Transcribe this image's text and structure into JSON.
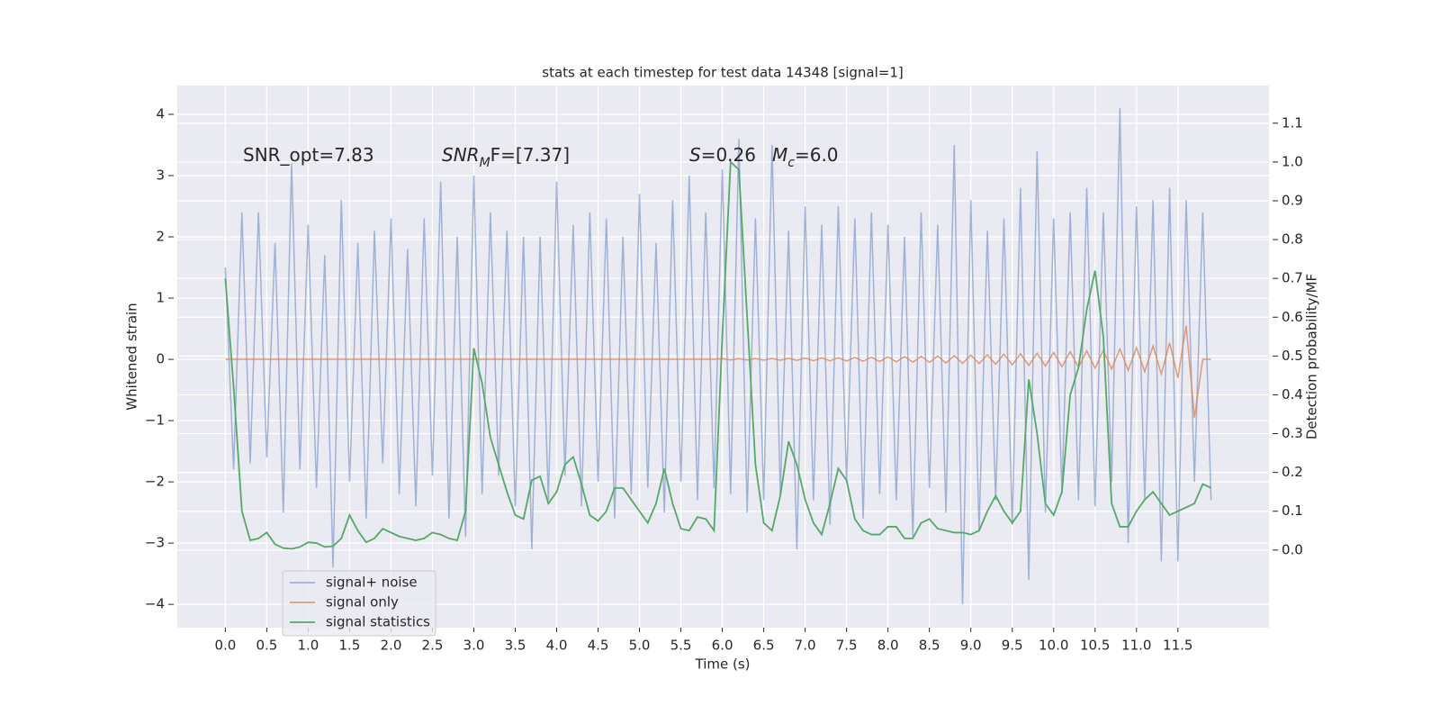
{
  "chart_data": {
    "type": "line",
    "title": "stats at each timestep for test data 14348 [signal=1]",
    "x_label": "Time (s)",
    "y_label": "Whitened strain",
    "y2_label": "Detection probability/MF",
    "annotations": [
      [
        {
          "text": "SNR_opt=7.83"
        }
      ],
      [
        {
          "text": "SNR",
          "italic": true
        },
        {
          "text": "M",
          "italic": true,
          "sub": true
        },
        {
          "text": "F=[7.37]"
        }
      ],
      [
        {
          "text": "S",
          "italic": true
        },
        {
          "text": "=0.26"
        }
      ],
      [
        {
          "text": "M",
          "italic": true
        },
        {
          "text": "c",
          "italic": true,
          "sub": true
        },
        {
          "text": "=6.0"
        }
      ]
    ],
    "x": [
      0,
      0.1,
      0.2,
      0.3,
      0.4,
      0.5,
      0.6,
      0.7,
      0.8,
      0.9,
      1,
      1.1,
      1.2,
      1.3,
      1.4,
      1.5,
      1.6,
      1.7,
      1.8,
      1.9,
      2,
      2.1,
      2.2,
      2.3,
      2.4,
      2.5,
      2.6,
      2.7,
      2.8,
      2.9,
      3,
      3.1,
      3.2,
      3.3,
      3.4,
      3.5,
      3.6,
      3.7,
      3.8,
      3.9,
      4,
      4.1,
      4.2,
      4.3,
      4.4,
      4.5,
      4.6,
      4.7,
      4.8,
      4.9,
      5,
      5.1,
      5.2,
      5.3,
      5.4,
      5.5,
      5.6,
      5.7,
      5.8,
      5.9,
      6,
      6.1,
      6.2,
      6.3,
      6.4,
      6.5,
      6.6,
      6.7,
      6.8,
      6.9,
      7,
      7.1,
      7.2,
      7.3,
      7.4,
      7.5,
      7.6,
      7.7,
      7.8,
      7.9,
      8,
      8.1,
      8.2,
      8.3,
      8.4,
      8.5,
      8.6,
      8.7,
      8.8,
      8.9,
      9,
      9.1,
      9.2,
      9.3,
      9.4,
      9.5,
      9.6,
      9.7,
      9.8,
      9.9,
      10,
      10.1,
      10.2,
      10.3,
      10.4,
      10.5,
      10.6,
      10.7,
      10.8,
      10.9,
      11,
      11.1,
      11.2,
      11.3,
      11.4,
      11.5,
      11.6,
      11.7,
      11.8,
      11.9
    ],
    "series": [
      {
        "name": "signal+ noise",
        "color": "#8ea3cd",
        "values": [
          1.5,
          -1.8,
          2.4,
          -1.7,
          2.4,
          -1.6,
          1.9,
          -2.5,
          3.2,
          -1.8,
          2.2,
          -2.1,
          1.7,
          -3.4,
          2.6,
          -2.0,
          1.9,
          -2.6,
          2.1,
          -1.7,
          2.3,
          -2.2,
          1.8,
          -2.4,
          2.3,
          -1.9,
          2.9,
          -2.6,
          2.0,
          -2.9,
          3.0,
          -2.2,
          2.4,
          -1.9,
          2.1,
          -2.4,
          2.0,
          -3.1,
          2.0,
          -2.3,
          2.9,
          -1.9,
          2.2,
          -2.4,
          2.4,
          -2.0,
          2.3,
          -2.6,
          2.0,
          -2.2,
          2.7,
          -2.1,
          1.9,
          -2.5,
          2.6,
          -2.0,
          3.0,
          -2.3,
          2.4,
          -2.1,
          3.1,
          -2.2,
          3.6,
          -2.5,
          2.3,
          -2.3,
          3.5,
          -2.2,
          2.1,
          -3.1,
          2.5,
          -2.3,
          2.2,
          -2.7,
          2.5,
          -2.0,
          2.3,
          -2.6,
          2.4,
          -2.2,
          2.2,
          -2.3,
          2.0,
          -2.9,
          2.4,
          -2.1,
          2.2,
          -2.5,
          3.5,
          -4.0,
          2.6,
          -2.8,
          2.1,
          -2.3,
          2.3,
          -2.7,
          2.8,
          -3.6,
          3.4,
          -2.5,
          2.3,
          -2.2,
          2.4,
          -2.3,
          2.8,
          -2.4,
          2.4,
          -2.0,
          4.1,
          -3.0,
          2.5,
          -2.3,
          2.6,
          -3.3,
          2.8,
          -3.3,
          2.6,
          -2.0,
          2.4,
          -2.3
        ]
      },
      {
        "name": "signal only",
        "color": "#dd8452",
        "values": [
          0,
          0,
          0,
          0,
          0,
          0,
          0,
          0,
          0,
          0,
          0,
          0,
          0,
          0,
          0,
          0,
          0,
          0,
          0,
          0,
          0,
          0,
          0,
          0,
          0,
          0,
          0,
          0,
          0,
          0,
          0,
          0,
          0,
          0,
          0,
          0,
          0,
          0,
          0,
          0,
          0,
          0,
          0,
          0,
          0,
          0,
          0,
          0,
          0,
          0,
          0,
          0,
          0,
          0,
          0,
          0,
          0,
          0,
          0,
          0,
          0.01,
          -0.01,
          0.01,
          -0.01,
          0.012,
          -0.012,
          0.014,
          -0.014,
          0.016,
          -0.016,
          0.02,
          -0.02,
          0.022,
          -0.022,
          0.025,
          -0.025,
          0.03,
          -0.03,
          0.033,
          -0.035,
          0.04,
          -0.04,
          0.045,
          -0.045,
          0.05,
          -0.05,
          0.055,
          -0.06,
          0.06,
          -0.065,
          0.07,
          -0.07,
          0.075,
          -0.08,
          0.085,
          -0.09,
          0.09,
          -0.1,
          0.1,
          -0.11,
          0.11,
          -0.12,
          0.125,
          -0.13,
          0.14,
          -0.145,
          0.15,
          -0.16,
          0.17,
          -0.18,
          0.19,
          -0.2,
          0.22,
          -0.24,
          0.27,
          -0.3,
          0.55,
          -0.95,
          0,
          0
        ]
      },
      {
        "name": "signal statistics",
        "color": "#55a868",
        "axis": "y2",
        "values": [
          0.7,
          0.42,
          0.1,
          0.025,
          0.03,
          0.045,
          0.015,
          0.005,
          0.003,
          0.008,
          0.02,
          0.018,
          0.008,
          0.01,
          0.03,
          0.09,
          0.05,
          0.02,
          0.03,
          0.055,
          0.045,
          0.035,
          0.03,
          0.025,
          0.03,
          0.045,
          0.04,
          0.03,
          0.025,
          0.1,
          0.52,
          0.43,
          0.29,
          0.22,
          0.15,
          0.09,
          0.08,
          0.18,
          0.19,
          0.12,
          0.15,
          0.22,
          0.24,
          0.17,
          0.09,
          0.075,
          0.1,
          0.16,
          0.16,
          0.13,
          0.1,
          0.07,
          0.12,
          0.21,
          0.12,
          0.055,
          0.05,
          0.085,
          0.08,
          0.05,
          0.55,
          1.0,
          0.98,
          0.6,
          0.22,
          0.07,
          0.05,
          0.14,
          0.28,
          0.22,
          0.13,
          0.07,
          0.04,
          0.12,
          0.21,
          0.18,
          0.08,
          0.05,
          0.04,
          0.04,
          0.06,
          0.06,
          0.03,
          0.03,
          0.07,
          0.08,
          0.055,
          0.05,
          0.045,
          0.045,
          0.04,
          0.05,
          0.1,
          0.14,
          0.1,
          0.07,
          0.1,
          0.44,
          0.3,
          0.12,
          0.09,
          0.15,
          0.4,
          0.47,
          0.62,
          0.72,
          0.55,
          0.12,
          0.06,
          0.06,
          0.1,
          0.13,
          0.15,
          0.12,
          0.09,
          0.1,
          0.11,
          0.12,
          0.17,
          0.16
        ]
      }
    ],
    "xlim": [
      -0.58,
      12.6
    ],
    "xticks": [
      {
        "value": 0,
        "label": "0.0"
      },
      0.5,
      {
        "value": 1,
        "label": "1.0"
      },
      1.5,
      {
        "value": 2,
        "label": "2.0"
      },
      2.5,
      {
        "value": 3,
        "label": "3.0"
      },
      3.5,
      {
        "value": 4,
        "label": "4.0"
      },
      4.5,
      {
        "value": 5,
        "label": "5.0"
      },
      5.5,
      {
        "value": 6,
        "label": "6.0"
      },
      6.5,
      {
        "value": 7,
        "label": "7.0"
      },
      7.5,
      {
        "value": 8,
        "label": "8.0"
      },
      8.5,
      {
        "value": 9,
        "label": "9.0"
      },
      9.5,
      {
        "value": 10,
        "label": "10.0"
      },
      10.5,
      {
        "value": 11,
        "label": "11.0"
      },
      11.5
    ],
    "ylim": [
      -4.38,
      4.47
    ],
    "yticks": [
      {
        "value": -4,
        "label": "−4"
      },
      {
        "value": -3,
        "label": "−3"
      },
      {
        "value": -2,
        "label": "−2"
      },
      {
        "value": -1,
        "label": "−1"
      },
      0,
      1,
      2,
      3,
      4
    ],
    "y2lim": [
      -0.2,
      1.197
    ],
    "y2ticks": [
      {
        "value": 0,
        "label": "0.0"
      },
      0.1,
      0.2,
      0.3,
      0.4,
      0.5,
      0.6,
      0.7,
      0.8,
      0.9,
      {
        "value": 1,
        "label": "1.0"
      },
      1.1
    ],
    "grid": true,
    "legend": "lower left"
  }
}
